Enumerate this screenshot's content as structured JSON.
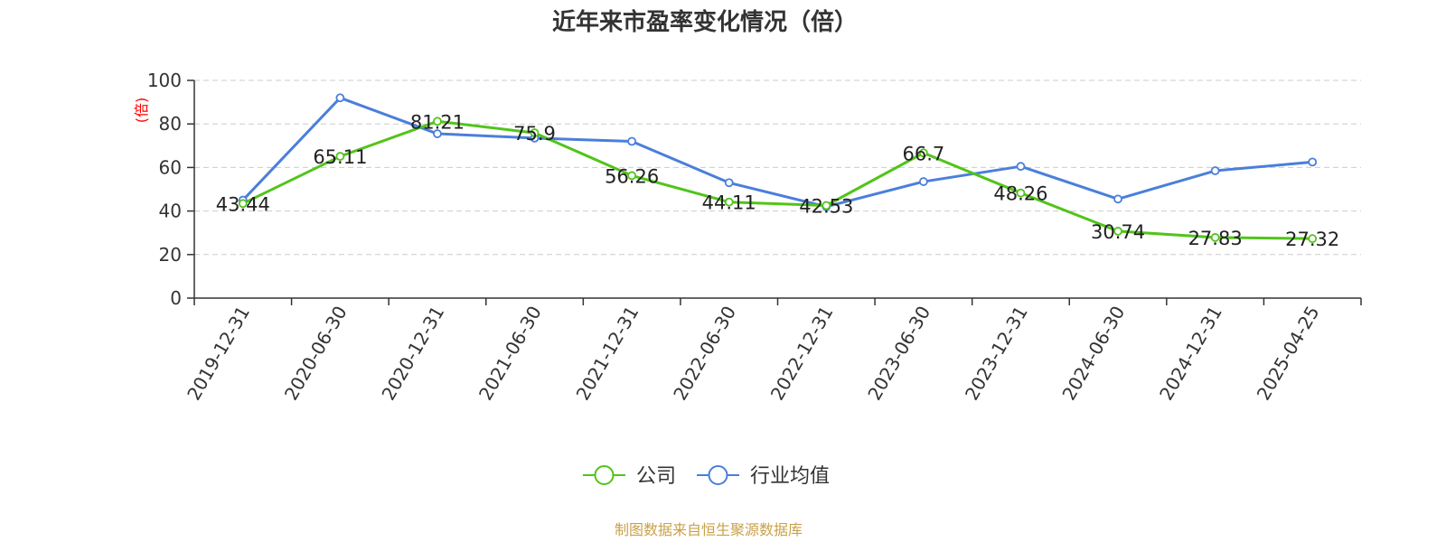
{
  "chart_data": {
    "type": "line",
    "title": "近年来市盈率变化情况（倍）",
    "ylabel": "(倍)",
    "ylim": [
      0,
      100
    ],
    "yticks": [
      "0",
      "20",
      "40",
      "60",
      "80",
      "100"
    ],
    "grid": true,
    "legend_position": "bottom-center",
    "categories": [
      "2019-12-31",
      "2020-06-30",
      "2020-12-31",
      "2021-06-30",
      "2021-12-31",
      "2022-06-30",
      "2022-12-31",
      "2023-06-30",
      "2023-12-31",
      "2024-06-30",
      "2024-12-31",
      "2025-04-25"
    ],
    "series": [
      {
        "name": "公司",
        "color": "#52c41a",
        "values": [
          43.44,
          65.11,
          81.21,
          75.9,
          56.26,
          44.11,
          42.53,
          66.7,
          48.26,
          30.74,
          27.83,
          27.32
        ],
        "labels": [
          "43.44",
          "65.11",
          "81.21",
          "75.9",
          "56.26",
          "44.11",
          "42.53",
          "66.7",
          "48.26",
          "30.74",
          "27.83",
          "27.32"
        ]
      },
      {
        "name": "行业均值",
        "color": "#4a7fdb",
        "values": [
          45,
          92,
          75.5,
          73.5,
          72,
          53,
          42,
          53.5,
          60.5,
          45.5,
          58.5,
          62.5
        ]
      }
    ]
  },
  "source_note": "制图数据来自恒生聚源数据库"
}
